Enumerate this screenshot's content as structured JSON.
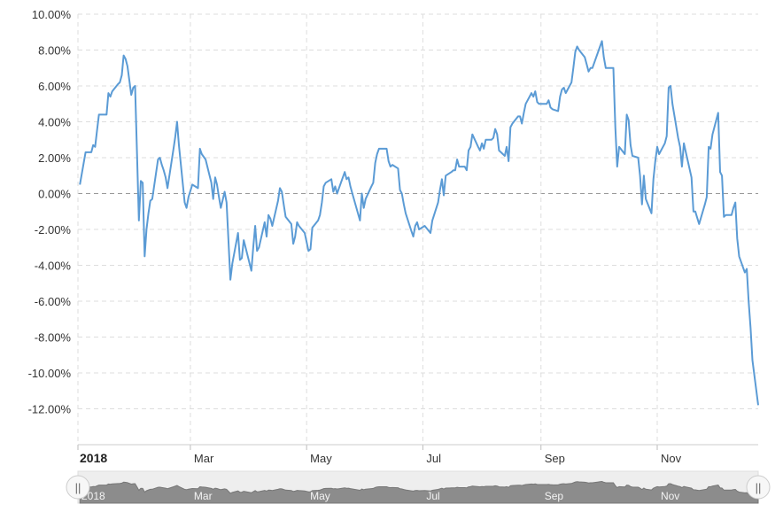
{
  "chart_data": {
    "type": "line",
    "x_ticks": [
      {
        "date": "2018-01-01",
        "label": "2018",
        "major": true
      },
      {
        "date": "2018-03-01",
        "label": "Mar",
        "major": false
      },
      {
        "date": "2018-05-01",
        "label": "May",
        "major": false
      },
      {
        "date": "2018-07-01",
        "label": "Jul",
        "major": false
      },
      {
        "date": "2018-09-01",
        "label": "Sep",
        "major": false
      },
      {
        "date": "2018-11-01",
        "label": "Nov",
        "major": false
      }
    ],
    "y_ticks": [
      {
        "value": 10,
        "label": "10.00%"
      },
      {
        "value": 8,
        "label": "8.00%"
      },
      {
        "value": 6,
        "label": "6.00%"
      },
      {
        "value": 4,
        "label": "4.00%"
      },
      {
        "value": 2,
        "label": "2.00%"
      },
      {
        "value": 0,
        "label": "0.00%"
      },
      {
        "value": -2,
        "label": "-2.00%"
      },
      {
        "value": -4,
        "label": "-4.00%"
      },
      {
        "value": -6,
        "label": "-6.00%"
      },
      {
        "value": -8,
        "label": "-8.00%"
      },
      {
        "value": -10,
        "label": "-10.00%"
      },
      {
        "value": -12,
        "label": "-12.00%"
      }
    ],
    "ylim": [
      -14,
      10
    ],
    "xlim": [
      "2018-01-01",
      "2018-12-24"
    ],
    "grid": true,
    "zero_line": true,
    "line_color": "#5b9bd5",
    "series": [
      {
        "points": [
          [
            "2018-01-02",
            0.5
          ],
          [
            "2018-01-05",
            2.3
          ],
          [
            "2018-01-08",
            2.3
          ],
          [
            "2018-01-09",
            2.7
          ],
          [
            "2018-01-10",
            2.6
          ],
          [
            "2018-01-11",
            3.5
          ],
          [
            "2018-01-12",
            4.4
          ],
          [
            "2018-01-16",
            4.4
          ],
          [
            "2018-01-17",
            5.6
          ],
          [
            "2018-01-18",
            5.4
          ],
          [
            "2018-01-19",
            5.7
          ],
          [
            "2018-01-22",
            6.1
          ],
          [
            "2018-01-23",
            6.2
          ],
          [
            "2018-01-24",
            6.6
          ],
          [
            "2018-01-25",
            7.7
          ],
          [
            "2018-01-26",
            7.5
          ],
          [
            "2018-01-27",
            7.1
          ],
          [
            "2018-01-29",
            5.5
          ],
          [
            "2018-01-30",
            5.9
          ],
          [
            "2018-01-31",
            6.0
          ],
          [
            "2018-02-01",
            2.2
          ],
          [
            "2018-02-02",
            -1.5
          ],
          [
            "2018-02-03",
            0.7
          ],
          [
            "2018-02-04",
            0.6
          ],
          [
            "2018-02-05",
            -3.5
          ],
          [
            "2018-02-06",
            -2.0
          ],
          [
            "2018-02-07",
            -1.1
          ],
          [
            "2018-02-08",
            -0.4
          ],
          [
            "2018-02-09",
            -0.3
          ],
          [
            "2018-02-12",
            1.9
          ],
          [
            "2018-02-13",
            2.0
          ],
          [
            "2018-02-14",
            1.6
          ],
          [
            "2018-02-15",
            1.3
          ],
          [
            "2018-02-16",
            0.9
          ],
          [
            "2018-02-17",
            0.3
          ],
          [
            "2018-02-20",
            2.4
          ],
          [
            "2018-02-21",
            3.1
          ],
          [
            "2018-02-22",
            4.0
          ],
          [
            "2018-02-23",
            2.7
          ],
          [
            "2018-02-26",
            -0.5
          ],
          [
            "2018-02-27",
            -0.8
          ],
          [
            "2018-02-28",
            -0.2
          ],
          [
            "2018-03-02",
            0.5
          ],
          [
            "2018-03-05",
            0.3
          ],
          [
            "2018-03-06",
            2.5
          ],
          [
            "2018-03-07",
            2.2
          ],
          [
            "2018-03-09",
            1.9
          ],
          [
            "2018-03-12",
            0.6
          ],
          [
            "2018-03-13",
            -0.3
          ],
          [
            "2018-03-14",
            0.9
          ],
          [
            "2018-03-15",
            0.5
          ],
          [
            "2018-03-16",
            -0.2
          ],
          [
            "2018-03-17",
            -0.8
          ],
          [
            "2018-03-19",
            0.1
          ],
          [
            "2018-03-20",
            -0.5
          ],
          [
            "2018-03-22",
            -4.8
          ],
          [
            "2018-03-23",
            -3.9
          ],
          [
            "2018-03-26",
            -2.2
          ],
          [
            "2018-03-27",
            -3.7
          ],
          [
            "2018-03-28",
            -3.6
          ],
          [
            "2018-03-29",
            -2.6
          ],
          [
            "2018-04-02",
            -4.3
          ],
          [
            "2018-04-03",
            -3.0
          ],
          [
            "2018-04-04",
            -1.8
          ],
          [
            "2018-04-05",
            -3.2
          ],
          [
            "2018-04-06",
            -3.0
          ],
          [
            "2018-04-09",
            -1.6
          ],
          [
            "2018-04-10",
            -2.4
          ],
          [
            "2018-04-11",
            -1.2
          ],
          [
            "2018-04-12",
            -1.4
          ],
          [
            "2018-04-13",
            -1.8
          ],
          [
            "2018-04-16",
            -0.4
          ],
          [
            "2018-04-17",
            0.3
          ],
          [
            "2018-04-18",
            0.1
          ],
          [
            "2018-04-19",
            -0.6
          ],
          [
            "2018-04-20",
            -1.3
          ],
          [
            "2018-04-23",
            -1.7
          ],
          [
            "2018-04-24",
            -2.8
          ],
          [
            "2018-04-25",
            -2.4
          ],
          [
            "2018-04-26",
            -1.6
          ],
          [
            "2018-04-27",
            -1.8
          ],
          [
            "2018-04-30",
            -2.2
          ],
          [
            "2018-05-02",
            -3.2
          ],
          [
            "2018-05-03",
            -3.1
          ],
          [
            "2018-05-04",
            -1.9
          ],
          [
            "2018-05-07",
            -1.5
          ],
          [
            "2018-05-08",
            -1.2
          ],
          [
            "2018-05-09",
            -0.5
          ],
          [
            "2018-05-10",
            0.4
          ],
          [
            "2018-05-11",
            0.6
          ],
          [
            "2018-05-14",
            0.8
          ],
          [
            "2018-05-15",
            0.1
          ],
          [
            "2018-05-16",
            0.4
          ],
          [
            "2018-05-17",
            0.0
          ],
          [
            "2018-05-18",
            0.3
          ],
          [
            "2018-05-21",
            1.2
          ],
          [
            "2018-05-22",
            0.8
          ],
          [
            "2018-05-23",
            0.9
          ],
          [
            "2018-05-24",
            0.4
          ],
          [
            "2018-05-25",
            0.0
          ],
          [
            "2018-05-29",
            -1.5
          ],
          [
            "2018-05-30",
            0.0
          ],
          [
            "2018-05-31",
            -0.8
          ],
          [
            "2018-06-01",
            -0.3
          ],
          [
            "2018-06-04",
            0.4
          ],
          [
            "2018-06-05",
            0.6
          ],
          [
            "2018-06-06",
            1.7
          ],
          [
            "2018-06-07",
            2.2
          ],
          [
            "2018-06-08",
            2.5
          ],
          [
            "2018-06-11",
            2.5
          ],
          [
            "2018-06-12",
            2.5
          ],
          [
            "2018-06-13",
            1.8
          ],
          [
            "2018-06-14",
            1.5
          ],
          [
            "2018-06-15",
            1.6
          ],
          [
            "2018-06-18",
            1.4
          ],
          [
            "2018-06-19",
            0.2
          ],
          [
            "2018-06-20",
            0.0
          ],
          [
            "2018-06-21",
            -0.6
          ],
          [
            "2018-06-22",
            -1.1
          ],
          [
            "2018-06-25",
            -2.1
          ],
          [
            "2018-06-26",
            -2.4
          ],
          [
            "2018-06-27",
            -1.8
          ],
          [
            "2018-06-28",
            -1.6
          ],
          [
            "2018-06-29",
            -2.0
          ],
          [
            "2018-07-02",
            -1.8
          ],
          [
            "2018-07-05",
            -2.2
          ],
          [
            "2018-07-06",
            -1.5
          ],
          [
            "2018-07-09",
            -0.5
          ],
          [
            "2018-07-10",
            0.2
          ],
          [
            "2018-07-11",
            0.8
          ],
          [
            "2018-07-12",
            -0.1
          ],
          [
            "2018-07-13",
            1.0
          ],
          [
            "2018-07-16",
            1.2
          ],
          [
            "2018-07-17",
            1.3
          ],
          [
            "2018-07-18",
            1.3
          ],
          [
            "2018-07-19",
            1.9
          ],
          [
            "2018-07-20",
            1.5
          ],
          [
            "2018-07-23",
            1.5
          ],
          [
            "2018-07-24",
            1.3
          ],
          [
            "2018-07-25",
            2.4
          ],
          [
            "2018-07-26",
            2.6
          ],
          [
            "2018-07-27",
            3.3
          ],
          [
            "2018-07-30",
            2.6
          ],
          [
            "2018-07-31",
            2.4
          ],
          [
            "2018-08-01",
            2.8
          ],
          [
            "2018-08-02",
            2.5
          ],
          [
            "2018-08-03",
            3.0
          ],
          [
            "2018-08-06",
            3.0
          ],
          [
            "2018-08-07",
            3.1
          ],
          [
            "2018-08-08",
            3.6
          ],
          [
            "2018-08-09",
            3.3
          ],
          [
            "2018-08-10",
            2.4
          ],
          [
            "2018-08-13",
            2.1
          ],
          [
            "2018-08-14",
            2.6
          ],
          [
            "2018-08-15",
            1.8
          ],
          [
            "2018-08-16",
            3.7
          ],
          [
            "2018-08-17",
            3.9
          ],
          [
            "2018-08-20",
            4.3
          ],
          [
            "2018-08-21",
            4.3
          ],
          [
            "2018-08-22",
            3.9
          ],
          [
            "2018-08-23",
            4.5
          ],
          [
            "2018-08-24",
            5.0
          ],
          [
            "2018-08-27",
            5.6
          ],
          [
            "2018-08-28",
            5.4
          ],
          [
            "2018-08-29",
            5.7
          ],
          [
            "2018-08-30",
            5.1
          ],
          [
            "2018-08-31",
            5.0
          ],
          [
            "2018-09-04",
            5.0
          ],
          [
            "2018-09-05",
            5.2
          ],
          [
            "2018-09-06",
            4.8
          ],
          [
            "2018-09-07",
            4.7
          ],
          [
            "2018-09-10",
            4.6
          ],
          [
            "2018-09-11",
            5.4
          ],
          [
            "2018-09-12",
            5.8
          ],
          [
            "2018-09-13",
            5.9
          ],
          [
            "2018-09-14",
            5.6
          ],
          [
            "2018-09-17",
            6.2
          ],
          [
            "2018-09-18",
            7.0
          ],
          [
            "2018-09-19",
            7.9
          ],
          [
            "2018-09-20",
            8.2
          ],
          [
            "2018-09-21",
            8.0
          ],
          [
            "2018-09-24",
            7.6
          ],
          [
            "2018-09-25",
            7.2
          ],
          [
            "2018-09-26",
            6.8
          ],
          [
            "2018-09-27",
            7.0
          ],
          [
            "2018-09-28",
            7.0
          ],
          [
            "2018-10-01",
            7.9
          ],
          [
            "2018-10-02",
            8.2
          ],
          [
            "2018-10-03",
            8.5
          ],
          [
            "2018-10-04",
            7.6
          ],
          [
            "2018-10-05",
            7.0
          ],
          [
            "2018-10-08",
            7.0
          ],
          [
            "2018-10-09",
            7.0
          ],
          [
            "2018-10-10",
            3.7
          ],
          [
            "2018-10-11",
            1.5
          ],
          [
            "2018-10-12",
            2.6
          ],
          [
            "2018-10-15",
            2.2
          ],
          [
            "2018-10-16",
            4.4
          ],
          [
            "2018-10-17",
            4.1
          ],
          [
            "2018-10-18",
            2.7
          ],
          [
            "2018-10-19",
            2.1
          ],
          [
            "2018-10-22",
            2.0
          ],
          [
            "2018-10-23",
            1.0
          ],
          [
            "2018-10-24",
            -0.6
          ],
          [
            "2018-10-25",
            1.0
          ],
          [
            "2018-10-26",
            -0.3
          ],
          [
            "2018-10-29",
            -1.1
          ],
          [
            "2018-10-30",
            0.8
          ],
          [
            "2018-10-31",
            1.8
          ],
          [
            "2018-11-01",
            2.6
          ],
          [
            "2018-11-02",
            2.2
          ],
          [
            "2018-11-05",
            2.8
          ],
          [
            "2018-11-06",
            3.2
          ],
          [
            "2018-11-07",
            5.9
          ],
          [
            "2018-11-08",
            6.0
          ],
          [
            "2018-11-09",
            5.0
          ],
          [
            "2018-11-12",
            3.1
          ],
          [
            "2018-11-13",
            2.6
          ],
          [
            "2018-11-14",
            1.5
          ],
          [
            "2018-11-15",
            2.8
          ],
          [
            "2018-11-16",
            2.3
          ],
          [
            "2018-11-19",
            0.9
          ],
          [
            "2018-11-20",
            -1.0
          ],
          [
            "2018-11-21",
            -1.0
          ],
          [
            "2018-11-23",
            -1.7
          ],
          [
            "2018-11-26",
            -0.6
          ],
          [
            "2018-11-27",
            -0.2
          ],
          [
            "2018-11-28",
            2.6
          ],
          [
            "2018-11-29",
            2.5
          ],
          [
            "2018-11-30",
            3.3
          ],
          [
            "2018-12-03",
            4.5
          ],
          [
            "2018-12-04",
            1.2
          ],
          [
            "2018-12-05",
            1.0
          ],
          [
            "2018-12-06",
            -1.3
          ],
          [
            "2018-12-07",
            -1.2
          ],
          [
            "2018-12-10",
            -1.2
          ],
          [
            "2018-12-11",
            -0.8
          ],
          [
            "2018-12-12",
            -0.5
          ],
          [
            "2018-12-13",
            -2.5
          ],
          [
            "2018-12-14",
            -3.5
          ],
          [
            "2018-12-17",
            -4.4
          ],
          [
            "2018-12-18",
            -4.2
          ],
          [
            "2018-12-19",
            -6.0
          ],
          [
            "2018-12-20",
            -7.5
          ],
          [
            "2018-12-21",
            -9.3
          ],
          [
            "2018-12-24",
            -11.8
          ]
        ]
      }
    ]
  },
  "navigator": {
    "labels": [
      "2018",
      "Mar",
      "May",
      "Jul",
      "Sep",
      "Nov"
    ],
    "handle_glyph": "||"
  }
}
